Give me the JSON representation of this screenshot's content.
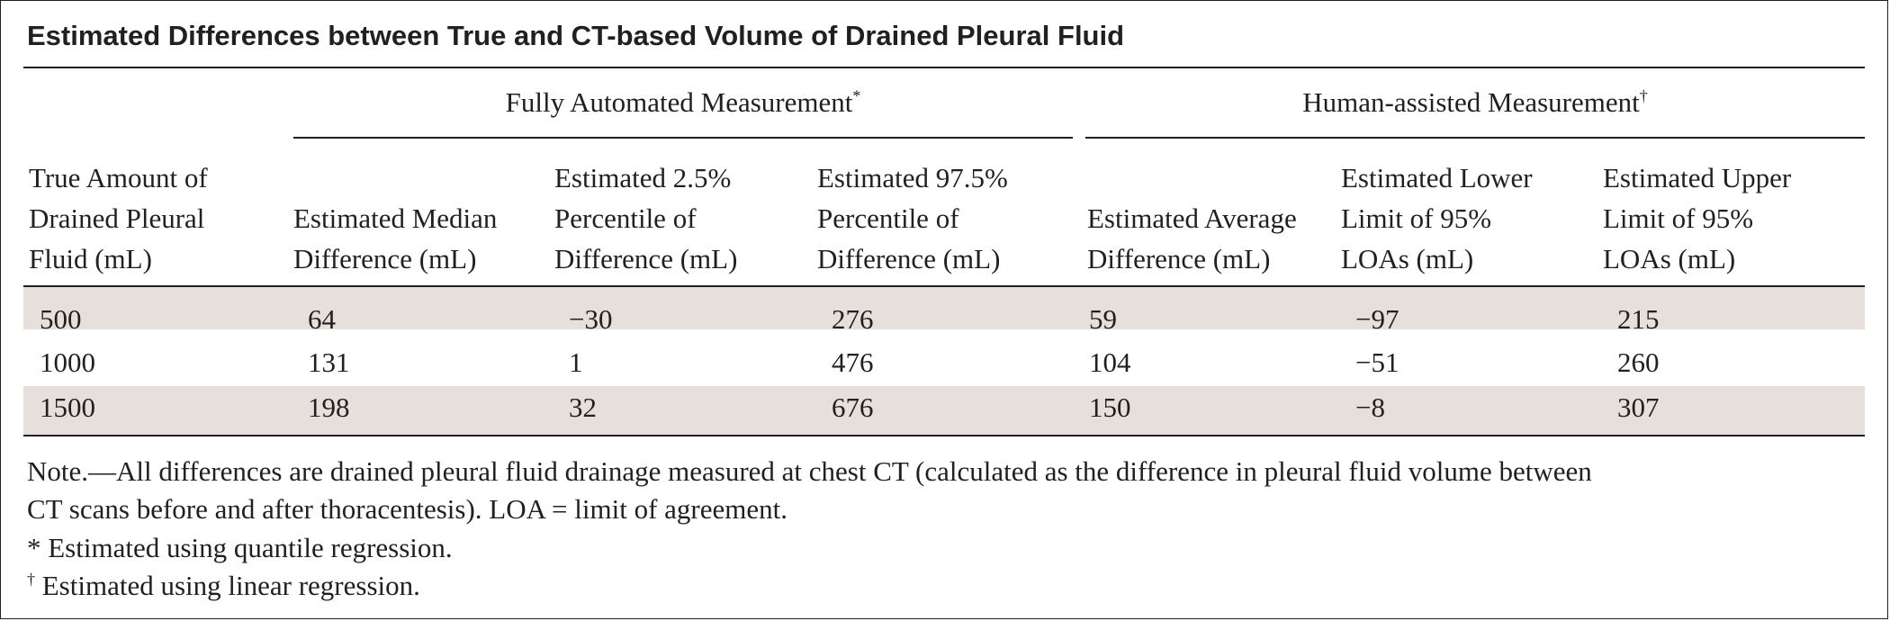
{
  "title": "Estimated Differences between True and CT-based Volume of Drained Pleural Fluid",
  "groups": {
    "auto": {
      "label": "Fully Automated Measurement",
      "mark": "*"
    },
    "human": {
      "label": "Human-assisted Measurement",
      "mark": "†"
    }
  },
  "columns": [
    {
      "line1": "True Amount of",
      "line2": "Drained Pleural",
      "line3": "Fluid (mL)"
    },
    {
      "line1": "",
      "line2": "Estimated Median",
      "line3": "Difference (mL)"
    },
    {
      "line1": "Estimated 2.5%",
      "line2": "Percentile of",
      "line3": "Difference (mL)"
    },
    {
      "line1": "Estimated 97.5%",
      "line2": "Percentile of",
      "line3": "Difference (mL)"
    },
    {
      "line1": "",
      "line2": "Estimated Average",
      "line3": "Difference (mL)"
    },
    {
      "line1": "Estimated Lower",
      "line2": "Limit of 95%",
      "line3": "LOAs (mL)"
    },
    {
      "line1": "Estimated Upper",
      "line2": "Limit of 95%",
      "line3": "LOAs (mL)"
    }
  ],
  "rows": [
    [
      "500",
      "64",
      "−30",
      "276",
      "59",
      "−97",
      "215"
    ],
    [
      "1000",
      "131",
      "1",
      "476",
      "104",
      "−51",
      "260"
    ],
    [
      "1500",
      "198",
      "32",
      "676",
      "150",
      "−8",
      "307"
    ]
  ],
  "notes": {
    "line1": "Note.—All differences are drained pleural fluid drainage measured at chest CT (calculated as the difference in pleural fluid volume between",
    "line2": "CT scans before and after thoracentesis). LOA = limit of agreement.",
    "star_mark": "*",
    "star_text": " Estimated using quantile regression.",
    "dagger_mark": "†",
    "dagger_text": " Estimated using linear regression."
  },
  "colors": {
    "stripe": "#e7dfdb",
    "text": "#231f20"
  }
}
